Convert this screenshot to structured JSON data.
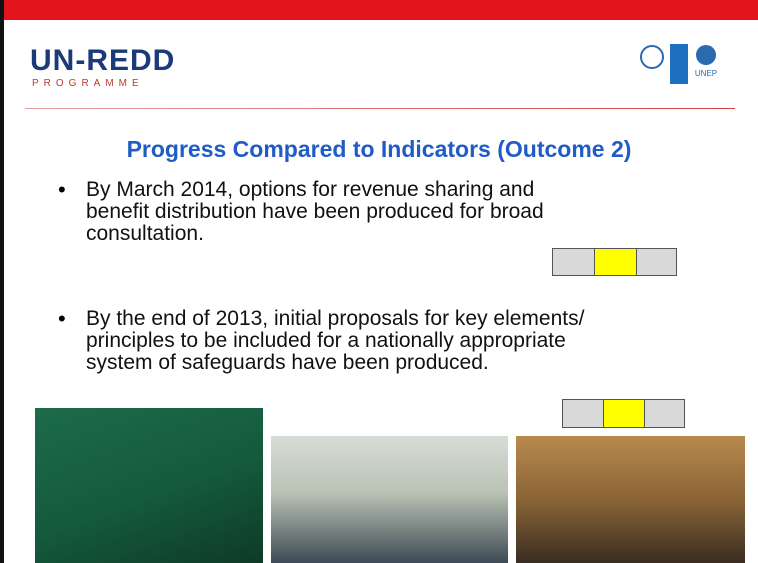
{
  "header": {
    "logo": {
      "title": "UN-REDD",
      "subtitle": "PROGRAMME"
    },
    "partners": [
      "UNEP"
    ]
  },
  "title": "Progress Compared to Indicators (Outcome 2)",
  "bullets": [
    {
      "lines": [
        "By March 2014, options for revenue sharing and",
        "benefit distribution have been produced for broad",
        "consultation."
      ]
    },
    {
      "lines": [
        "By the end of 2013, initial proposals for key elements/",
        "principles to be included for a nationally appropriate",
        "system of safeguards have been produced."
      ]
    }
  ]
}
